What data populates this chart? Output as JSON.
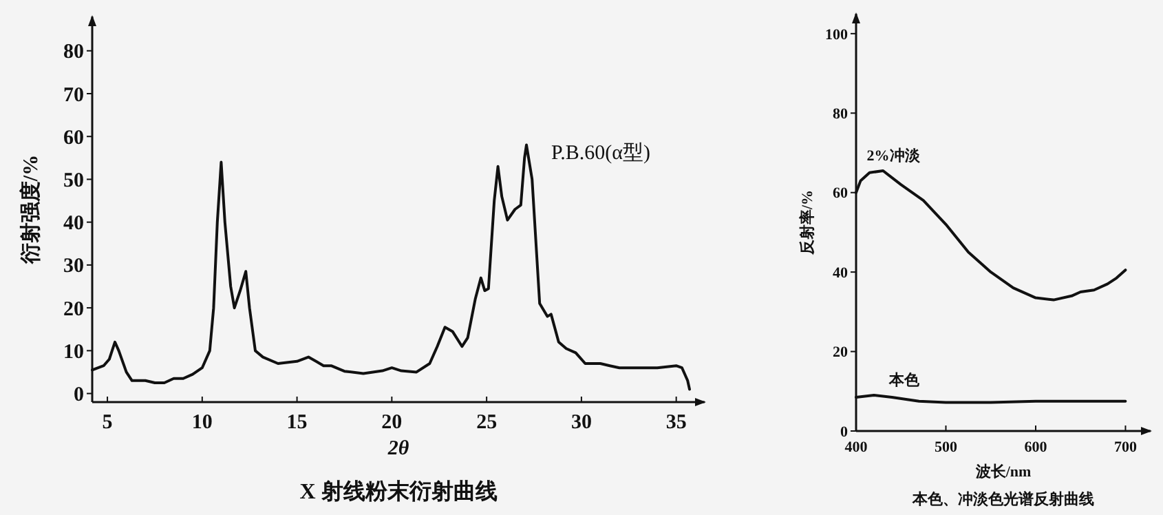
{
  "chart_data": [
    {
      "type": "line",
      "title": "X 射线粉末衍射曲线",
      "xlabel": "2θ",
      "ylabel": "衍射强度/%",
      "xlim": [
        4.2,
        36.5
      ],
      "ylim": [
        -2,
        88
      ],
      "xticks": [
        5,
        10,
        15,
        20,
        25,
        30,
        35
      ],
      "yticks": [
        0,
        10,
        20,
        30,
        40,
        50,
        60,
        70,
        80
      ],
      "grid": false,
      "series": [
        {
          "name": "P.B.60(α型)",
          "color": "#111111",
          "x": [
            4.2,
            4.8,
            5.1,
            5.4,
            5.6,
            6.0,
            6.3,
            7,
            7.5,
            8,
            8.5,
            9,
            9.5,
            10,
            10.4,
            10.6,
            10.8,
            11.0,
            11.2,
            11.5,
            11.7,
            12.0,
            12.3,
            12.5,
            12.8,
            13.2,
            14,
            15,
            15.6,
            16,
            16.4,
            16.8,
            17.5,
            18.5,
            19.5,
            20,
            20.5,
            21.3,
            22,
            22.4,
            22.8,
            23.2,
            23.7,
            24,
            24.4,
            24.7,
            24.9,
            25.1,
            25.4,
            25.6,
            25.8,
            26.1,
            26.5,
            26.8,
            27,
            27.1,
            27.4,
            27.8,
            28.2,
            28.4,
            28.8,
            29.2,
            29.7,
            30.2,
            31,
            31.5,
            32,
            34,
            35,
            35.3,
            35.6,
            35.7
          ],
          "values": [
            5.5,
            6.5,
            8,
            12,
            10,
            5,
            3,
            3,
            2.5,
            2.5,
            3.5,
            3.5,
            4.5,
            6,
            10,
            20,
            40,
            54,
            40,
            25,
            20,
            24,
            28.5,
            20,
            10,
            8.5,
            7,
            7.5,
            8.5,
            7.5,
            6.5,
            6.5,
            5.2,
            4.7,
            5.3,
            6,
            5.3,
            5,
            7,
            11,
            15.5,
            14.5,
            11,
            13,
            22,
            27,
            24,
            24.5,
            45,
            53,
            46,
            40.5,
            43,
            44,
            55,
            58,
            50,
            21,
            18,
            18.5,
            12,
            10.5,
            9.5,
            7,
            7,
            6.5,
            6,
            6,
            6.5,
            6,
            3,
            1
          ]
        }
      ]
    },
    {
      "type": "line",
      "title": "本色、冲淡色光谱反射曲线",
      "xlabel": "波长/nm",
      "ylabel": "反射率/%",
      "xlim": [
        400,
        728
      ],
      "ylim": [
        0,
        105
      ],
      "xticks": [
        400,
        500,
        600,
        700
      ],
      "yticks": [
        0,
        20,
        40,
        60,
        80,
        100
      ],
      "grid": false,
      "series": [
        {
          "name": "2%冲淡",
          "color": "#111111",
          "x": [
            400,
            405,
            415,
            430,
            450,
            475,
            500,
            525,
            550,
            575,
            600,
            620,
            640,
            650,
            665,
            680,
            690,
            700
          ],
          "values": [
            60,
            63,
            65,
            65.5,
            62,
            58,
            52,
            45,
            40,
            36,
            33.5,
            33,
            34,
            35,
            35.5,
            37,
            38.5,
            40.5
          ]
        },
        {
          "name": "本色",
          "color": "#111111",
          "x": [
            400,
            420,
            440,
            470,
            500,
            550,
            600,
            700
          ],
          "values": [
            8.5,
            9,
            8.5,
            7.5,
            7.2,
            7.2,
            7.5,
            7.5
          ]
        }
      ]
    }
  ]
}
